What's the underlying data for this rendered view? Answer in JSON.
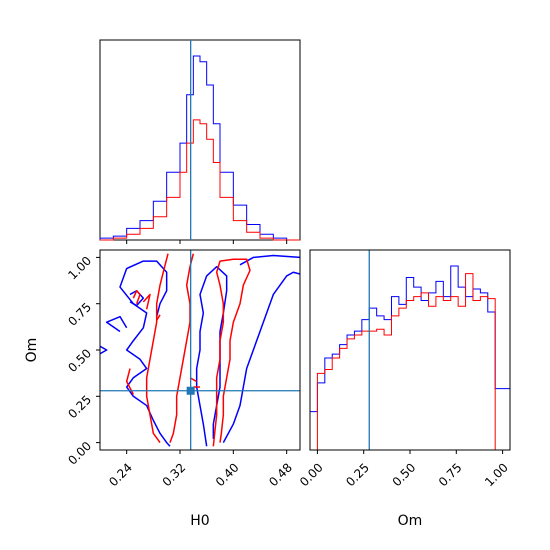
{
  "chart_data": {
    "type": "corner",
    "colors": {
      "blue": "#0000ff",
      "red": "#ff0000",
      "truth": "#1f77b4"
    },
    "truth": {
      "H0": 0.336,
      "Om": 0.28
    },
    "axes": {
      "H0": {
        "label": "H0",
        "lim": [
          0.2,
          0.5
        ],
        "ticks": [
          "0.24",
          "0.32",
          "0.40",
          "0.48"
        ],
        "tick_values": [
          0.24,
          0.32,
          0.4,
          0.48
        ]
      },
      "Om": {
        "label": "Om",
        "lim": [
          -0.04,
          1.04
        ],
        "ticks": [
          "0.00",
          "0.25",
          "0.50",
          "0.75",
          "1.00"
        ],
        "tick_values": [
          0.0,
          0.25,
          0.5,
          0.75,
          1.0
        ]
      }
    },
    "hist_H0": {
      "x": [
        0.2,
        0.22,
        0.24,
        0.26,
        0.28,
        0.3,
        0.32,
        0.33,
        0.34,
        0.35,
        0.36,
        0.37,
        0.38,
        0.4,
        0.42,
        0.44,
        0.46,
        0.48,
        0.5
      ],
      "blue": [
        1,
        2,
        6,
        10,
        20,
        35,
        50,
        75,
        95,
        92,
        80,
        60,
        35,
        18,
        8,
        3,
        1,
        0
      ],
      "red": [
        0,
        1,
        3,
        6,
        12,
        22,
        35,
        50,
        62,
        60,
        52,
        40,
        22,
        10,
        4,
        1,
        0,
        0
      ]
    },
    "hist_Om": {
      "x": [
        -0.04,
        0.0,
        0.04,
        0.08,
        0.12,
        0.16,
        0.2,
        0.24,
        0.28,
        0.32,
        0.36,
        0.4,
        0.44,
        0.48,
        0.52,
        0.56,
        0.6,
        0.64,
        0.68,
        0.72,
        0.76,
        0.8,
        0.84,
        0.88,
        0.92,
        0.96,
        1.0,
        1.04
      ],
      "blue": [
        20,
        35,
        48,
        50,
        55,
        60,
        62,
        68,
        74,
        70,
        68,
        80,
        76,
        90,
        85,
        78,
        82,
        88,
        80,
        96,
        85,
        80,
        84,
        82,
        72,
        32,
        32
      ],
      "red": [
        0,
        40,
        42,
        48,
        53,
        58,
        60,
        62,
        62,
        63,
        60,
        70,
        74,
        78,
        80,
        82,
        75,
        80,
        78,
        80,
        75,
        92,
        78,
        80,
        79,
        0,
        0
      ]
    },
    "contours": {
      "blue": [
        [
          [
            0.2,
            0.48
          ],
          [
            0.21,
            0.5
          ],
          [
            0.2,
            0.52
          ]
        ],
        [
          [
            0.23,
            0.6
          ],
          [
            0.21,
            0.65
          ],
          [
            0.23,
            0.68
          ],
          [
            0.24,
            0.62
          ]
        ],
        [
          [
            0.245,
            0.8
          ],
          [
            0.255,
            0.82
          ],
          [
            0.265,
            0.78
          ],
          [
            0.255,
            0.74
          ],
          [
            0.245,
            0.76
          ]
        ],
        [
          [
            0.285,
            0.68
          ],
          [
            0.29,
            0.75
          ],
          [
            0.3,
            0.82
          ],
          [
            0.3,
            0.92
          ],
          [
            0.285,
            0.98
          ],
          [
            0.265,
            0.98
          ],
          [
            0.24,
            0.94
          ],
          [
            0.23,
            0.84
          ],
          [
            0.25,
            0.75
          ],
          [
            0.27,
            0.7
          ],
          [
            0.265,
            0.62
          ],
          [
            0.25,
            0.55
          ],
          [
            0.24,
            0.5
          ],
          [
            0.26,
            0.45
          ],
          [
            0.27,
            0.4
          ],
          [
            0.25,
            0.35
          ],
          [
            0.24,
            0.3
          ],
          [
            0.25,
            0.25
          ],
          [
            0.27,
            0.2
          ],
          [
            0.28,
            0.12
          ],
          [
            0.29,
            0.05
          ],
          [
            0.3,
            0.0
          ],
          [
            0.305,
            -0.02
          ]
        ],
        [
          [
            0.36,
            -0.02
          ],
          [
            0.355,
            0.1
          ],
          [
            0.35,
            0.2
          ],
          [
            0.345,
            0.3
          ],
          [
            0.345,
            0.4
          ],
          [
            0.35,
            0.5
          ],
          [
            0.35,
            0.6
          ],
          [
            0.355,
            0.7
          ],
          [
            0.35,
            0.8
          ],
          [
            0.36,
            0.9
          ],
          [
            0.375,
            0.95
          ],
          [
            0.39,
            0.9
          ],
          [
            0.39,
            0.82
          ],
          [
            0.385,
            0.7
          ],
          [
            0.38,
            0.6
          ],
          [
            0.38,
            0.5
          ],
          [
            0.38,
            0.4
          ],
          [
            0.38,
            0.3
          ],
          [
            0.375,
            0.2
          ],
          [
            0.37,
            0.1
          ],
          [
            0.37,
            0.02
          ]
        ],
        [
          [
            0.385,
            0.0
          ],
          [
            0.4,
            0.1
          ],
          [
            0.41,
            0.2
          ],
          [
            0.415,
            0.3
          ],
          [
            0.42,
            0.4
          ],
          [
            0.43,
            0.5
          ],
          [
            0.44,
            0.6
          ],
          [
            0.45,
            0.7
          ],
          [
            0.46,
            0.8
          ],
          [
            0.48,
            0.9
          ],
          [
            0.49,
            0.92
          ],
          [
            0.5,
            0.91
          ]
        ],
        [
          [
            0.41,
            0.96
          ],
          [
            0.43,
            1.0
          ],
          [
            0.46,
            1.01
          ],
          [
            0.5,
            1.0
          ]
        ]
      ],
      "red": [
        [
          [
            0.255,
            0.75
          ],
          [
            0.26,
            0.8
          ],
          [
            0.255,
            0.82
          ],
          [
            0.25,
            0.78
          ]
        ],
        [
          [
            0.27,
            0.72
          ],
          [
            0.275,
            0.8
          ],
          [
            0.265,
            0.76
          ]
        ],
        [
          [
            0.285,
            0.66
          ],
          [
            0.29,
            0.69
          ]
        ],
        [
          [
            0.245,
            0.4
          ],
          [
            0.24,
            0.33
          ],
          [
            0.25,
            0.26
          ]
        ],
        [
          [
            0.302,
            1.02
          ],
          [
            0.297,
            0.95
          ],
          [
            0.29,
            0.85
          ],
          [
            0.285,
            0.75
          ],
          [
            0.285,
            0.65
          ],
          [
            0.28,
            0.55
          ],
          [
            0.275,
            0.45
          ],
          [
            0.27,
            0.35
          ],
          [
            0.27,
            0.25
          ],
          [
            0.275,
            0.15
          ],
          [
            0.28,
            0.05
          ],
          [
            0.29,
            0.0
          ]
        ],
        [
          [
            0.305,
            0.0
          ],
          [
            0.31,
            0.05
          ],
          [
            0.315,
            0.15
          ],
          [
            0.315,
            0.25
          ],
          [
            0.32,
            0.35
          ],
          [
            0.325,
            0.45
          ],
          [
            0.33,
            0.55
          ],
          [
            0.335,
            0.65
          ],
          [
            0.335,
            0.75
          ],
          [
            0.33,
            0.85
          ],
          [
            0.335,
            0.95
          ],
          [
            0.34,
            1.02
          ]
        ],
        [
          [
            0.335,
            0.35
          ],
          [
            0.345,
            0.33
          ]
        ],
        [
          [
            0.34,
            0.3
          ],
          [
            0.35,
            0.3
          ]
        ],
        [
          [
            0.37,
            -0.02
          ],
          [
            0.372,
            0.05
          ],
          [
            0.375,
            0.15
          ],
          [
            0.375,
            0.25
          ],
          [
            0.375,
            0.35
          ],
          [
            0.38,
            0.45
          ],
          [
            0.38,
            0.55
          ],
          [
            0.385,
            0.65
          ],
          [
            0.385,
            0.75
          ],
          [
            0.38,
            0.85
          ],
          [
            0.375,
            0.92
          ],
          [
            0.38,
            0.98
          ],
          [
            0.4,
            0.99
          ],
          [
            0.42,
            0.99
          ],
          [
            0.425,
            0.93
          ],
          [
            0.415,
            0.85
          ],
          [
            0.41,
            0.75
          ],
          [
            0.4,
            0.65
          ],
          [
            0.395,
            0.55
          ],
          [
            0.395,
            0.45
          ],
          [
            0.39,
            0.35
          ],
          [
            0.385,
            0.25
          ],
          [
            0.385,
            0.15
          ],
          [
            0.382,
            0.05
          ],
          [
            0.38,
            0.0
          ]
        ]
      ]
    }
  }
}
